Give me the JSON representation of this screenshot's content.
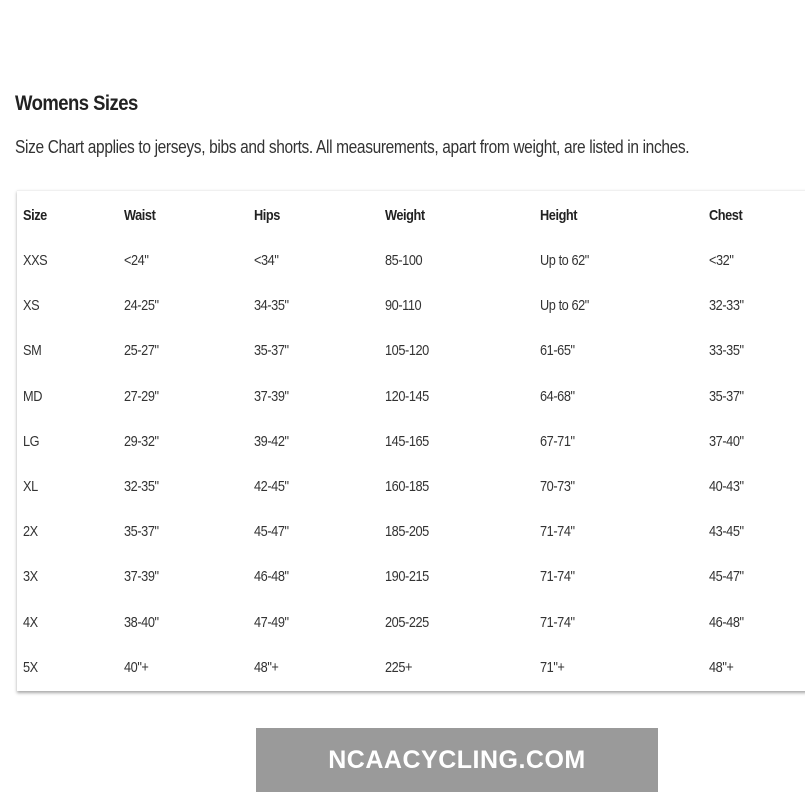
{
  "title": "Womens Sizes",
  "subtitle": "Size Chart applies to jerseys, bibs and shorts. All measurements, apart from weight, are listed in inches.",
  "table": {
    "headers": [
      "Size",
      "Waist",
      "Hips",
      "Weight",
      "Height",
      "Chest"
    ],
    "rows": [
      [
        "XXS",
        "<24\"",
        "<34\"",
        "85-100",
        "Up to 62\"",
        "<32\""
      ],
      [
        "XS",
        "24-25\"",
        "34-35\"",
        "90-110",
        "Up to 62\"",
        "32-33\""
      ],
      [
        "SM",
        "25-27\"",
        "35-37\"",
        "105-120",
        "61-65\"",
        "33-35\""
      ],
      [
        "MD",
        "27-29\"",
        "37-39\"",
        "120-145",
        "64-68\"",
        "35-37\""
      ],
      [
        "LG",
        "29-32\"",
        "39-42\"",
        "145-165",
        "67-71\"",
        "37-40\""
      ],
      [
        "XL",
        "32-35\"",
        "42-45\"",
        "160-185",
        "70-73\"",
        "40-43\""
      ],
      [
        "2X",
        "35-37\"",
        "45-47\"",
        "185-205",
        "71-74\"",
        "43-45\""
      ],
      [
        "3X",
        "37-39\"",
        "46-48\"",
        "190-215",
        "71-74\"",
        "45-47\""
      ],
      [
        "4X",
        "38-40\"",
        "47-49\"",
        "205-225",
        "71-74\"",
        "46-48\""
      ],
      [
        "5X",
        "40\"+",
        "48\"+",
        "225+",
        "71\"+",
        "48\"+"
      ]
    ]
  },
  "watermark": "NCAACYCLING.COM"
}
